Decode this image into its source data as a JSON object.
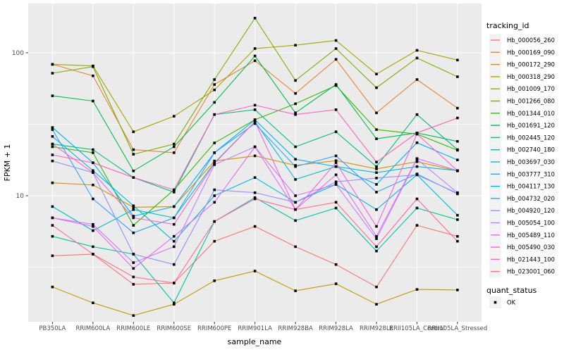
{
  "chart_data": {
    "type": "line",
    "title": "",
    "xlabel": "sample_name",
    "ylabel": "FPKM + 1",
    "y_scale": "log10",
    "y_ticks": [
      10,
      100
    ],
    "y_minor_gridlines": [
      3.162,
      31.62
    ],
    "ylim_approx": [
      1.35,
      215
    ],
    "grid": "on",
    "legend_position": "right",
    "legend_title": "tracking_id",
    "quant_status_title": "quant_status",
    "quant_status_value": "OK",
    "marker": "small-black-square",
    "panel_color": "#EBEBEB",
    "gridline_color": "#FFFFFF",
    "axis_text_color": "#4D4D4D",
    "categories": [
      "PB350LA",
      "RRIM600LA",
      "RRIM600LE",
      "RRIM600SE",
      "RRIM600PE",
      "RRIM901LA",
      "RRIM928BA",
      "RRIM928LA",
      "RRIM928LE",
      "RRII105LA_Control",
      "RRII105LA_Stressed"
    ],
    "series": [
      {
        "name": "Hb_000056_260",
        "color": "#F8766D",
        "values": [
          3.8,
          3.9,
          2.4,
          2.45,
          4.8,
          6.1,
          4.4,
          3.3,
          2.3,
          6.2,
          5.2
        ]
      },
      {
        "name": "Hb_000169_090",
        "color": "#EA8331",
        "values": [
          83,
          69,
          21,
          20,
          60,
          88,
          52,
          90,
          38,
          65,
          41
        ]
      },
      {
        "name": "Hb_000172_290",
        "color": "#D89000",
        "values": [
          12.3,
          11.9,
          8.3,
          8.4,
          17.5,
          19,
          16.3,
          17.6,
          15.4,
          17.3,
          14.9
        ]
      },
      {
        "name": "Hb_000318_290",
        "color": "#C09B00",
        "values": [
          2.3,
          1.78,
          1.45,
          1.74,
          2.54,
          2.97,
          2.16,
          2.42,
          1.74,
          2.21,
          2.19
        ]
      },
      {
        "name": "Hb_001009_170",
        "color": "#A3A500",
        "values": [
          83,
          81,
          28,
          36,
          55,
          107,
          113,
          122,
          71,
          104,
          89
        ]
      },
      {
        "name": "Hb_001266_080",
        "color": "#7CAE00",
        "values": [
          72,
          80,
          19.5,
          23,
          65,
          175,
          64,
          107,
          57,
          92,
          68
        ]
      },
      {
        "name": "Hb_001344_010",
        "color": "#39B600",
        "values": [
          22,
          20,
          6.2,
          11,
          23.4,
          34,
          44,
          59,
          29,
          27,
          20.8
        ]
      },
      {
        "name": "Hb_001691_120",
        "color": "#00BB4E",
        "values": [
          50,
          46,
          14.9,
          22,
          45,
          95,
          38,
          60,
          25,
          27.5,
          24
        ]
      },
      {
        "name": "Hb_002445_120",
        "color": "#00BF7D",
        "values": [
          23,
          21,
          13.4,
          10.6,
          37,
          40,
          22,
          28,
          16,
          37,
          21
        ]
      },
      {
        "name": "Hb_002740_180",
        "color": "#00C1A3",
        "values": [
          5.2,
          4.4,
          3.9,
          1.78,
          6.6,
          9.7,
          6.7,
          8.2,
          4.1,
          8.2,
          6.8
        ]
      },
      {
        "name": "Hb_003697_030",
        "color": "#00BFC4",
        "values": [
          8.4,
          5.7,
          8.0,
          7.0,
          17,
          33,
          13,
          16,
          14.5,
          16,
          15
        ]
      },
      {
        "name": "Hb_003777_310",
        "color": "#00BAE0",
        "values": [
          26,
          15,
          8.5,
          4.8,
          10,
          13.4,
          9,
          12,
          8,
          14,
          7.3
        ]
      },
      {
        "name": "Hb_004117_130",
        "color": "#00B0F6",
        "values": [
          30,
          17,
          7.2,
          8.4,
          20,
          34,
          18,
          16,
          12,
          23.5,
          17.8
        ]
      },
      {
        "name": "Hb_004732_020",
        "color": "#35A2FF",
        "values": [
          29,
          9.5,
          5.5,
          7.0,
          20,
          32,
          16,
          19,
          10.6,
          14.2,
          10.3
        ]
      },
      {
        "name": "Hb_004920_120",
        "color": "#9590FF",
        "values": [
          17.5,
          14.5,
          3.9,
          3.3,
          11,
          10.5,
          9,
          12.5,
          13.3,
          14.0,
          10.4
        ]
      },
      {
        "name": "Hb_005054_100",
        "color": "#C77CFF",
        "values": [
          7.0,
          6.3,
          3.4,
          4.4,
          16.5,
          22,
          10,
          12,
          5.0,
          18,
          10.5
        ]
      },
      {
        "name": "Hb_005489_110",
        "color": "#E76BF3",
        "values": [
          7.0,
          6.1,
          3.1,
          5.2,
          9,
          22,
          8,
          14,
          5.2,
          18.2,
          15
        ]
      },
      {
        "name": "Hb_005490_030",
        "color": "#FA62DB",
        "values": [
          23,
          14.5,
          7.0,
          6.3,
          16.8,
          33,
          8,
          17,
          6.1,
          27,
          15
        ]
      },
      {
        "name": "Hb_021443_100",
        "color": "#FF62BC",
        "values": [
          19.3,
          17,
          13.4,
          11,
          37,
          43,
          37,
          40,
          17.2,
          27.5,
          35
        ]
      },
      {
        "name": "Hb_023001_060",
        "color": "#FF6A98",
        "values": [
          6.2,
          3.9,
          2.7,
          2.45,
          6.6,
          9.5,
          8.0,
          9.0,
          4.4,
          9.5,
          4.8
        ]
      }
    ]
  }
}
